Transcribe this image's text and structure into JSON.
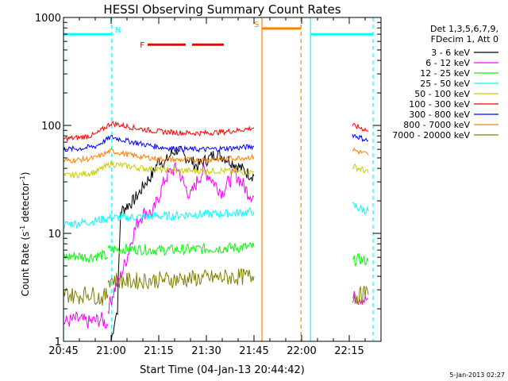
{
  "chart_data": {
    "type": "line",
    "title": "HESSI Observing Summary Count Rates",
    "xlabel": "Start Time (04-Jan-13 20:44:42)",
    "ylabel_main": "Count Rate (s",
    "ylabel_sup1": "-1",
    "ylabel_mid": " detector",
    "ylabel_sup2": "-1",
    "ylabel_end": ")",
    "ylabel": "Count Rate (s^-1 detector^-1)",
    "yscale": "log",
    "ylim": [
      1,
      1000
    ],
    "xlim_minutes": [
      0,
      100
    ],
    "x_ticks": [
      {
        "label": "20:45",
        "min": 0
      },
      {
        "label": "21:00",
        "min": 15
      },
      {
        "label": "21:15",
        "min": 30
      },
      {
        "label": "21:30",
        "min": 45
      },
      {
        "label": "21:45",
        "min": 60
      },
      {
        "label": "22:00",
        "min": 75
      },
      {
        "label": "22:15",
        "min": 90
      }
    ],
    "y_ticks": [
      {
        "label": "1",
        "v": 1
      },
      {
        "label": "10",
        "v": 10
      },
      {
        "label": "100",
        "v": 100
      },
      {
        "label": "1000",
        "v": 1000
      }
    ],
    "legend": {
      "header1": "Det 1,3,5,6,7,9,",
      "header2": "FDecim 1, Att 0",
      "placement": "right"
    },
    "series": [
      {
        "name": "3 - 6 keV",
        "color": "#000000",
        "segments": [
          {
            "x": [
              15,
              16,
              17,
              18,
              20,
              22,
              24,
              26,
              28,
              30,
              32,
              34,
              36,
              38,
              40,
              42,
              44,
              46,
              48,
              50,
              52,
              54,
              56,
              58,
              60
            ],
            "y": [
              1,
              1.5,
              2,
              16,
              18,
              20,
              24,
              30,
              35,
              48,
              45,
              55,
              60,
              52,
              48,
              42,
              46,
              50,
              55,
              52,
              48,
              44,
              40,
              36,
              34
            ]
          }
        ]
      },
      {
        "name": "6 - 12 keV",
        "color": "#ff00ff",
        "segments": [
          {
            "x": [
              0,
              4,
              8,
              12,
              14
            ],
            "y": [
              1.5,
              1.6,
              1.5,
              1.6,
              1.4
            ]
          },
          {
            "x": [
              14,
              16,
              18,
              20,
              22,
              24,
              26,
              28,
              30,
              32,
              34,
              36,
              38,
              40,
              42,
              44,
              46,
              48,
              50,
              52,
              54,
              56,
              58,
              60
            ],
            "y": [
              2,
              3,
              4,
              6,
              10,
              14,
              16,
              15,
              22,
              32,
              38,
              40,
              28,
              22,
              30,
              38,
              34,
              28,
              24,
              30,
              36,
              30,
              24,
              22
            ]
          },
          {
            "x": [
              91,
              93,
              95,
              96
            ],
            "y": [
              2.5,
              2.6,
              2.4,
              2.5
            ]
          }
        ]
      },
      {
        "name": "12 - 25 keV",
        "color": "#00ff00",
        "segments": [
          {
            "x": [
              0,
              4,
              8,
              12,
              14
            ],
            "y": [
              6,
              6.2,
              6,
              6.3,
              6
            ]
          },
          {
            "x": [
              14,
              20,
              30,
              40,
              50,
              60
            ],
            "y": [
              7,
              7.2,
              7,
              7.1,
              7.3,
              7.5
            ]
          },
          {
            "x": [
              91,
              93,
              95,
              96
            ],
            "y": [
              5.5,
              5.8,
              5.6,
              5.5
            ]
          }
        ]
      },
      {
        "name": "25 - 50 keV",
        "color": "#00ffff",
        "segments": [
          {
            "x": [
              0,
              5,
              10,
              15,
              20,
              25,
              30,
              35,
              40,
              45,
              50,
              55,
              60
            ],
            "y": [
              12,
              12.5,
              13,
              14,
              14,
              14.2,
              14.5,
              14.5,
              15,
              15,
              15.2,
              15.5,
              16
            ]
          },
          {
            "x": [
              91,
              93,
              95,
              96
            ],
            "y": [
              18,
              17,
              16.5,
              16
            ]
          }
        ]
      },
      {
        "name": "50 - 100 keV",
        "color": "#cccc00",
        "segments": [
          {
            "x": [
              0,
              5,
              10,
              15,
              20,
              25,
              30,
              35,
              40,
              45,
              50,
              55,
              60
            ],
            "y": [
              34,
              35,
              37,
              44,
              42,
              40,
              39,
              38,
              38,
              38,
              38,
              37,
              37
            ]
          },
          {
            "x": [
              91,
              93,
              95,
              96
            ],
            "y": [
              42,
              40,
              38,
              36
            ]
          }
        ]
      },
      {
        "name": "100 - 300 keV",
        "color": "#ff0000",
        "segments": [
          {
            "x": [
              0,
              5,
              10,
              15,
              20,
              25,
              30,
              35,
              40,
              45,
              50,
              55,
              60
            ],
            "y": [
              75,
              77,
              82,
              105,
              98,
              92,
              88,
              86,
              85,
              85,
              87,
              90,
              95
            ]
          },
          {
            "x": [
              91,
              93,
              95,
              96
            ],
            "y": [
              100,
              96,
              92,
              88
            ]
          }
        ]
      },
      {
        "name": "300 - 800 keV",
        "color": "#0000ff",
        "segments": [
          {
            "x": [
              0,
              5,
              10,
              15,
              20,
              25,
              30,
              35,
              40,
              45,
              50,
              55,
              60
            ],
            "y": [
              60,
              61,
              64,
              78,
              72,
              67,
              63,
              61,
              60,
              60,
              61,
              62,
              64
            ]
          },
          {
            "x": [
              91,
              93,
              95,
              96
            ],
            "y": [
              82,
              78,
              74,
              72
            ]
          }
        ]
      },
      {
        "name": "800 - 7000 keV",
        "color": "#ff8000",
        "segments": [
          {
            "x": [
              0,
              5,
              10,
              15,
              20,
              25,
              30,
              35,
              40,
              45,
              50,
              55,
              60
            ],
            "y": [
              47,
              48,
              50,
              58,
              54,
              51,
              49,
              48,
              48,
              48,
              49,
              50,
              51
            ]
          },
          {
            "x": [
              91,
              93,
              95,
              96
            ],
            "y": [
              60,
              57,
              55,
              53
            ]
          }
        ]
      },
      {
        "name": "7000 - 20000 keV",
        "color": "#808000",
        "segments": [
          {
            "x": [
              0,
              4,
              8,
              12,
              14
            ],
            "y": [
              2.8,
              2.6,
              2.8,
              2.5,
              2.7
            ]
          },
          {
            "x": [
              14,
              20,
              30,
              40,
              50,
              60
            ],
            "y": [
              3.8,
              3.6,
              3.7,
              3.8,
              3.9,
              4
            ]
          },
          {
            "x": [
              91,
              93,
              95,
              96
            ],
            "y": [
              2.7,
              2.6,
              2.8,
              2.7
            ]
          }
        ]
      }
    ],
    "regions": [
      {
        "label": "N",
        "color": "#00ffff",
        "value": 700,
        "from_min": 0,
        "to_min": 15.2,
        "boundary_min": 15.2
      },
      {
        "label": "",
        "color": "#00ffff",
        "value": 700,
        "from_min": 77.8,
        "to_min": 97.5,
        "boundary_min": 97.5
      },
      {
        "label": "F",
        "color": "#ff0000",
        "value": 560,
        "bars": [
          [
            26.5,
            38.5
          ],
          [
            40.5,
            50.5
          ]
        ]
      },
      {
        "label": "S",
        "color": "#ff8000",
        "value": 790,
        "from_min": 62.5,
        "to_min": 74.8
      }
    ],
    "vertical_markers": [
      {
        "min": 15.2,
        "color": "#00ffff",
        "style": "dashed"
      },
      {
        "min": 62.5,
        "color": "#ff8000",
        "style": "solid"
      },
      {
        "min": 77.8,
        "color": "#00ffff",
        "style": "solid"
      },
      {
        "min": 74.8,
        "color": "#ff8000",
        "style": "dashed"
      },
      {
        "min": 97.5,
        "color": "#00ffff",
        "style": "dashed"
      },
      {
        "min": 0,
        "color": "#00ffff",
        "style": "solid"
      }
    ],
    "generated": "5-Jan-2013 02:27"
  }
}
